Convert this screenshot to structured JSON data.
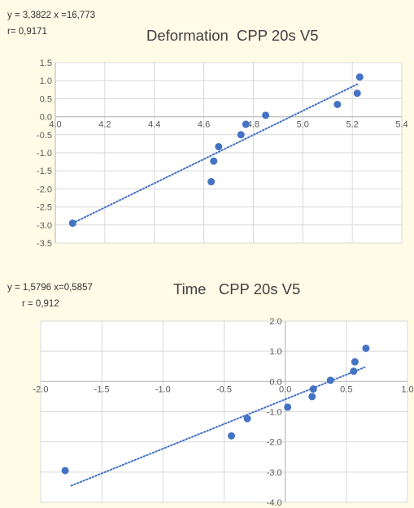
{
  "charts": [
    {
      "equation": "y = 3,3822 x =16,773",
      "r_value": "r= 0,9171",
      "title": "Deformation  CPP 20s V5"
    },
    {
      "equation": "y = 1,5796 x=0,5857",
      "r_value": "r = 0,912",
      "title": "Time   CPP 20s V5"
    }
  ],
  "colors": {
    "point": "#4472c4",
    "grid": "#d9d9d9",
    "axis": "#bfbfbf",
    "tick_text": "#595959",
    "background": "#fffbe6",
    "plot": "#ffffff"
  },
  "chart_data": [
    {
      "type": "scatter",
      "title": "Deformation  CPP 20s V5",
      "xlim": [
        4.0,
        5.4
      ],
      "ylim": [
        -3.5,
        1.5
      ],
      "x_ticks": [
        "4.0",
        "4.2",
        "4.4",
        "4.6",
        "4.8",
        "5.0",
        "5.2",
        "5.4"
      ],
      "y_ticks": [
        "1.5",
        "1.0",
        "0.5",
        "0.0",
        "-0.5",
        "-1.0",
        "-1.5",
        "-2.0",
        "-2.5",
        "-3.0",
        "-3.5"
      ],
      "grid": true,
      "trendline": {
        "style": "dotted-linear",
        "x_range": [
          4.07,
          5.22
        ],
        "y_range": [
          -2.95,
          0.9
        ]
      },
      "points": [
        {
          "x": 4.07,
          "y": -2.95
        },
        {
          "x": 4.63,
          "y": -1.8
        },
        {
          "x": 4.64,
          "y": -1.23
        },
        {
          "x": 4.66,
          "y": -0.83
        },
        {
          "x": 4.75,
          "y": -0.5
        },
        {
          "x": 4.77,
          "y": -0.21
        },
        {
          "x": 4.85,
          "y": 0.04
        },
        {
          "x": 5.14,
          "y": 0.34
        },
        {
          "x": 5.22,
          "y": 0.65
        },
        {
          "x": 5.23,
          "y": 1.1
        }
      ]
    },
    {
      "type": "scatter",
      "title": "Time   CPP 20s V5",
      "xlim": [
        -2.0,
        1.0
      ],
      "ylim": [
        -4.0,
        2.0
      ],
      "x_ticks": [
        "-2.0",
        "-1.5",
        "-1.0",
        "-0.5",
        "0.0",
        "0.5",
        "1.0"
      ],
      "y_ticks": [
        "2.0",
        "1.0",
        "0.0",
        "-1.0",
        "-2.0",
        "-3.0",
        "-4.0"
      ],
      "grid": true,
      "trendline": {
        "style": "dotted-linear",
        "x_range": [
          -1.75,
          0.65
        ],
        "y_range": [
          -3.45,
          0.47
        ]
      },
      "points": [
        {
          "x": -1.8,
          "y": -2.95
        },
        {
          "x": -0.44,
          "y": -1.8
        },
        {
          "x": -0.31,
          "y": -1.23
        },
        {
          "x": 0.02,
          "y": -0.85
        },
        {
          "x": 0.22,
          "y": -0.5
        },
        {
          "x": 0.23,
          "y": -0.25
        },
        {
          "x": 0.37,
          "y": 0.04
        },
        {
          "x": 0.56,
          "y": 0.34
        },
        {
          "x": 0.57,
          "y": 0.65
        },
        {
          "x": 0.66,
          "y": 1.1
        }
      ]
    }
  ]
}
